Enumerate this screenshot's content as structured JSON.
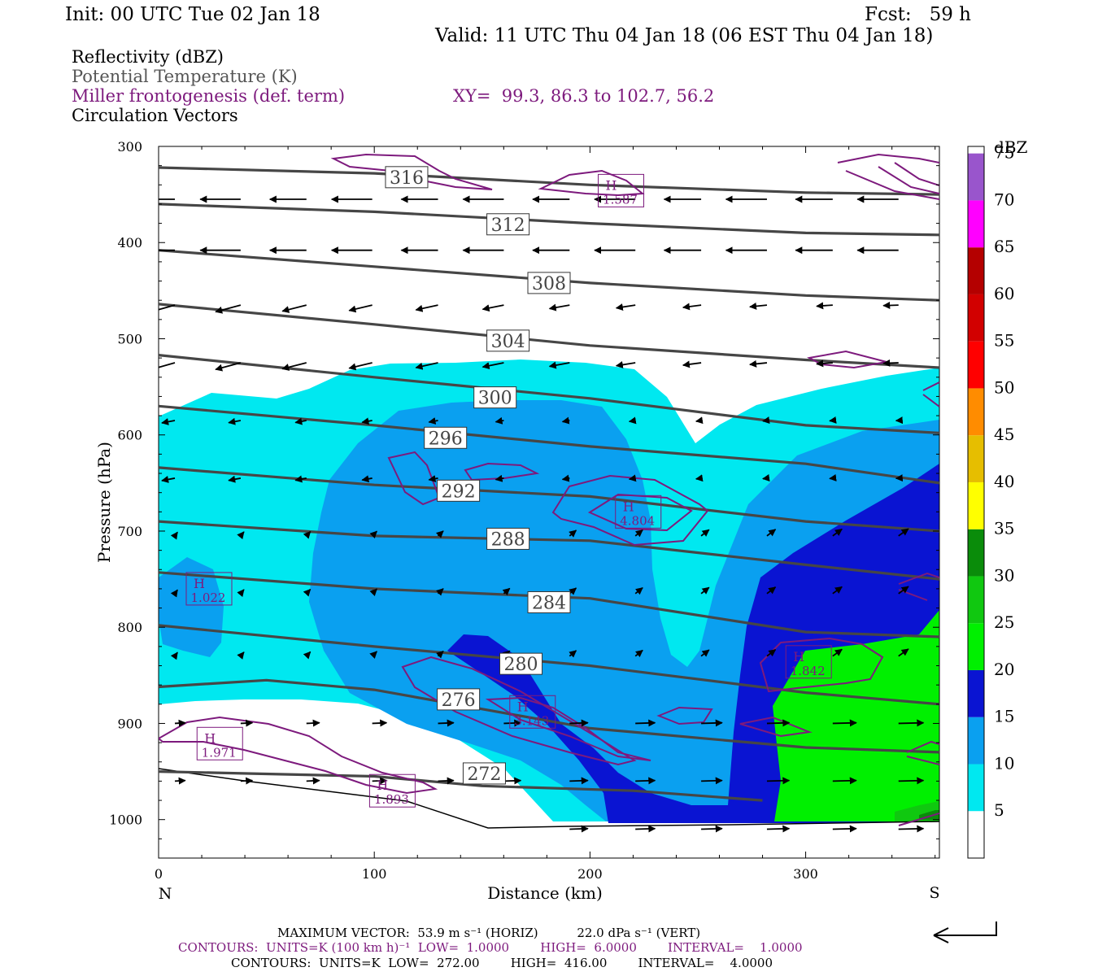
{
  "header": {
    "init": "Init: 00 UTC Tue 02 Jan 18",
    "fcst": "Fcst:   59 h",
    "valid": "Valid: 11 UTC Thu 04 Jan 18 (06 EST Thu 04 Jan 18)"
  },
  "fields": {
    "reflectivity": "Reflectivity (dBZ)",
    "theta": "Potential Temperature (K)",
    "frontogenesis": "Miller frontogenesis (def. term)",
    "xy": "XY=  99.3, 86.3 to 102.7, 56.2",
    "vectors": "Circulation Vectors"
  },
  "colors": {
    "theta_line": "#464646",
    "frontogenesis_line": "#7d1a7d",
    "vector": "#000000",
    "cyan": "#00e8f0",
    "medium_blue": "#0aa0f0",
    "dark_blue": "#0a14d2",
    "green": "#00f000"
  },
  "chart_data": {
    "type": "cross-section",
    "xlabel": "Distance (km)",
    "ylabel": "Pressure (hPa)",
    "xlim": [
      0,
      362
    ],
    "ylim": [
      1040,
      300
    ],
    "x_ticks": [
      "0",
      "100",
      "200",
      "300"
    ],
    "y_ticks": [
      "300",
      "400",
      "500",
      "600",
      "700",
      "800",
      "900",
      "1000"
    ],
    "x_end_labels": {
      "left": "N",
      "right": "S"
    },
    "colorbar": {
      "title": "dBZ",
      "levels": [
        "5",
        "10",
        "15",
        "20",
        "25",
        "30",
        "35",
        "40",
        "45",
        "50",
        "55",
        "60",
        "65",
        "70",
        "75"
      ],
      "colors": [
        "#ffffff",
        "#00e8f0",
        "#0aa0f0",
        "#0a14d2",
        "#00f000",
        "#10c810",
        "#0a8c0a",
        "#ffff00",
        "#e6be00",
        "#ff8c00",
        "#ff0000",
        "#d20000",
        "#b40000",
        "#ff00ff",
        "#9955cc"
      ]
    },
    "theta_contours": [
      {
        "label": "316",
        "points": [
          [
            0,
            322
          ],
          [
            100,
            328
          ],
          [
            200,
            340
          ],
          [
            300,
            348
          ],
          [
            362,
            350
          ]
        ]
      },
      {
        "label": "312",
        "points": [
          [
            0,
            360
          ],
          [
            100,
            368
          ],
          [
            200,
            380
          ],
          [
            300,
            390
          ],
          [
            362,
            392
          ]
        ]
      },
      {
        "label": "308",
        "points": [
          [
            0,
            408
          ],
          [
            100,
            425
          ],
          [
            200,
            442
          ],
          [
            300,
            455
          ],
          [
            362,
            460
          ]
        ]
      },
      {
        "label": "304",
        "points": [
          [
            0,
            464
          ],
          [
            100,
            485
          ],
          [
            200,
            507
          ],
          [
            300,
            522
          ],
          [
            362,
            530
          ]
        ]
      },
      {
        "label": "300",
        "points": [
          [
            0,
            517
          ],
          [
            100,
            540
          ],
          [
            200,
            562
          ],
          [
            300,
            590
          ],
          [
            362,
            598
          ]
        ]
      },
      {
        "label": "296",
        "points": [
          [
            0,
            570
          ],
          [
            100,
            590
          ],
          [
            200,
            612
          ],
          [
            300,
            630
          ],
          [
            362,
            650
          ]
        ]
      },
      {
        "label": "292",
        "points": [
          [
            0,
            634
          ],
          [
            100,
            652
          ],
          [
            200,
            664
          ],
          [
            300,
            690
          ],
          [
            362,
            700
          ]
        ]
      },
      {
        "label": "288",
        "points": [
          [
            0,
            690
          ],
          [
            100,
            705
          ],
          [
            200,
            710
          ],
          [
            300,
            735
          ],
          [
            362,
            750
          ]
        ]
      },
      {
        "label": "284",
        "points": [
          [
            0,
            743
          ],
          [
            100,
            760
          ],
          [
            200,
            770
          ],
          [
            300,
            805
          ],
          [
            362,
            810
          ]
        ]
      },
      {
        "label": "280",
        "points": [
          [
            0,
            798
          ],
          [
            100,
            820
          ],
          [
            200,
            840
          ],
          [
            300,
            868
          ],
          [
            362,
            880
          ]
        ]
      },
      {
        "label": "276",
        "points": [
          [
            0,
            862
          ],
          [
            50,
            855
          ],
          [
            100,
            865
          ],
          [
            200,
            905
          ],
          [
            300,
            925
          ],
          [
            362,
            930
          ]
        ]
      },
      {
        "label": "272",
        "points": [
          [
            0,
            950
          ],
          [
            100,
            955
          ],
          [
            150,
            965
          ],
          [
            220,
            970
          ],
          [
            280,
            980
          ]
        ]
      }
    ],
    "theta_labels": [
      {
        "text": "316",
        "x": 115,
        "p": 332
      },
      {
        "text": "312",
        "x": 162,
        "p": 381
      },
      {
        "text": "308",
        "x": 181,
        "p": 442
      },
      {
        "text": "304",
        "x": 162,
        "p": 502
      },
      {
        "text": "300",
        "x": 156,
        "p": 561
      },
      {
        "text": "296",
        "x": 133,
        "p": 603
      },
      {
        "text": "292",
        "x": 139,
        "p": 658
      },
      {
        "text": "288",
        "x": 162,
        "p": 708
      },
      {
        "text": "284",
        "x": 181,
        "p": 774
      },
      {
        "text": "280",
        "x": 168,
        "p": 838
      },
      {
        "text": "276",
        "x": 139,
        "p": 875
      },
      {
        "text": "272",
        "x": 151,
        "p": 952
      }
    ],
    "frontogenesis_maxima": [
      {
        "label": "H",
        "value": "1.587",
        "x": 214,
        "p": 346
      },
      {
        "label": "H",
        "value": "4.804",
        "x": 222,
        "p": 680
      },
      {
        "label": "H",
        "value": "1.022",
        "x": 23,
        "p": 760
      },
      {
        "label": "H",
        "value": "1.842",
        "x": 301,
        "p": 836
      },
      {
        "label": "H",
        "value": "3.143",
        "x": 173,
        "p": 888
      },
      {
        "label": "H",
        "value": "1.971",
        "x": 28,
        "p": 921
      },
      {
        "label": "H",
        "value": "1.893",
        "x": 108,
        "p": 970
      }
    ],
    "reference_vector": {
      "horiz_ms": 53.9,
      "vert_dpas": 22.0
    }
  },
  "footer": {
    "max_vector": "MAXIMUM VECTOR:  53.9 m s⁻¹ (HORIZ)          22.0 dPa s⁻¹ (VERT)",
    "contours_fgen": "CONTOURS:  UNITS=K (100 km h)⁻¹  LOW=  1.0000        HIGH=  6.0000        INTERVAL=    1.0000",
    "contours_theta": "CONTOURS:  UNITS=K  LOW=  272.00        HIGH=  416.00        INTERVAL=    4.0000"
  }
}
